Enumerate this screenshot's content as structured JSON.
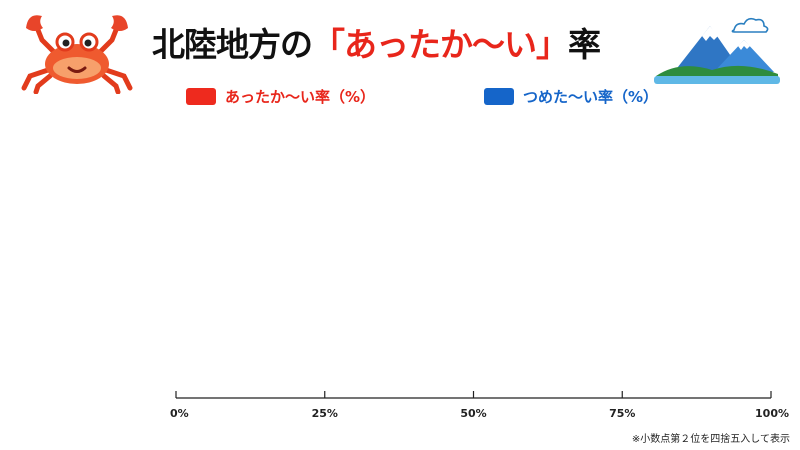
{
  "title": {
    "prefix": "北陸地方の",
    "open_bracket": "「",
    "highlight": "あったか〜い",
    "close_bracket": "」",
    "suffix": "率"
  },
  "colors": {
    "warm": "#ee2a1e",
    "cool": "#1565c9",
    "axis": "#222222",
    "title_accent": "#e8261b"
  },
  "icons": {
    "left": "crab-icon",
    "right": "mountain-landscape-icon"
  },
  "chart_data": {
    "type": "bar",
    "orientation": "horizontal",
    "categories": [],
    "series": [
      {
        "name": "あったか〜い率（%）",
        "color": "#ee2a1e",
        "values": []
      },
      {
        "name": "つめた〜い率（%）",
        "color": "#1565c9",
        "values": []
      }
    ],
    "xlim": [
      0,
      100
    ],
    "x_ticks": [
      0,
      25,
      50,
      75,
      100
    ],
    "x_tick_labels": [
      "0%",
      "25%",
      "50%",
      "75%",
      "100%"
    ],
    "legend_position": "top",
    "grid": false
  },
  "footnote": "※小数点第２位を四捨五入して表示"
}
